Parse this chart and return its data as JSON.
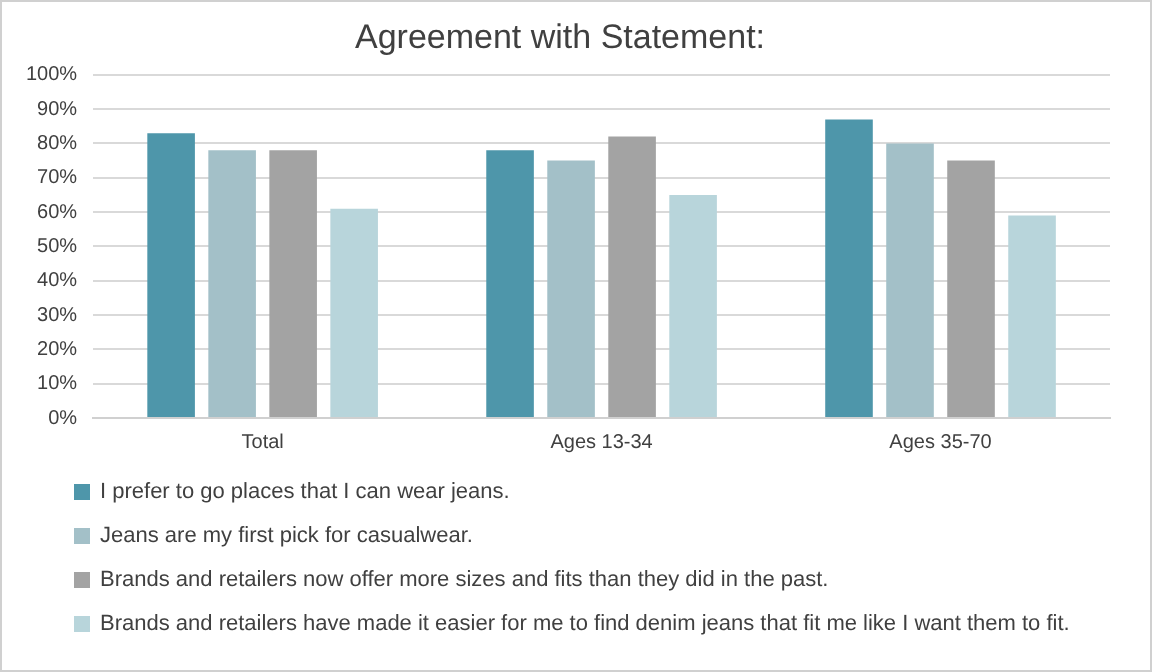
{
  "chart_data": {
    "type": "bar",
    "title": "Agreement with Statement:",
    "categories": [
      "Total",
      "Ages 13-34",
      "Ages 35-70"
    ],
    "series": [
      {
        "name": "I prefer to go places that I can wear jeans.",
        "color": "#4e96aa",
        "values": [
          83,
          78,
          87
        ]
      },
      {
        "name": "Jeans are my first pick for casualwear.",
        "color": "#a3c0c8",
        "values": [
          78,
          75,
          80
        ]
      },
      {
        "name": "Brands and retailers now offer more sizes and fits than they did in the past.",
        "color": "#a3a3a3",
        "values": [
          78,
          82,
          75
        ]
      },
      {
        "name": "Brands and retailers have made it easier for me to find denim jeans that fit me like I want them to fit.",
        "color": "#b8d5db",
        "values": [
          61,
          65,
          59
        ]
      }
    ],
    "ylim": [
      0,
      100
    ],
    "yticks": [
      {
        "value": 0,
        "label": "0%"
      },
      {
        "value": 10,
        "label": "10%"
      },
      {
        "value": 20,
        "label": "20%"
      },
      {
        "value": 30,
        "label": "30%"
      },
      {
        "value": 40,
        "label": "40%"
      },
      {
        "value": 50,
        "label": "50%"
      },
      {
        "value": 60,
        "label": "60%"
      },
      {
        "value": 70,
        "label": "70%"
      },
      {
        "value": 80,
        "label": "80%"
      },
      {
        "value": 90,
        "label": "90%"
      },
      {
        "value": 100,
        "label": "100%"
      }
    ],
    "grid": "y",
    "legend": "bottom"
  }
}
